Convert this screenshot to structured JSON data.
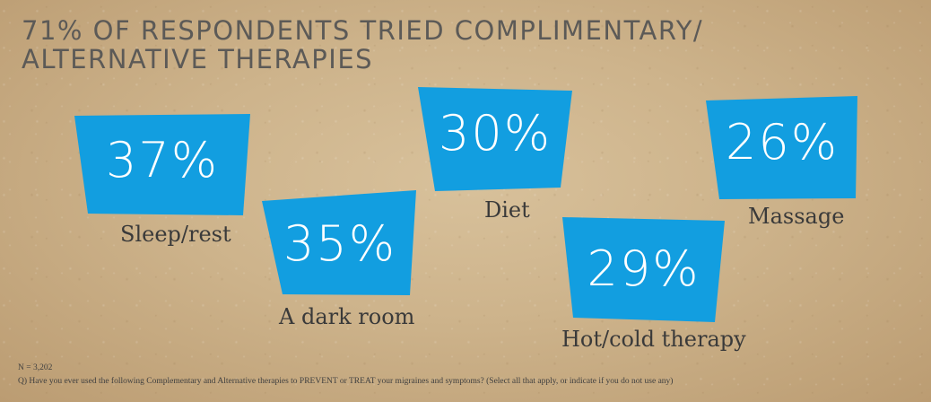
{
  "title": {
    "line1": "71% OF RESPONDENTS TRIED COMPLIMENTARY/",
    "line2": "ALTERNATIVE THERAPIES"
  },
  "colors": {
    "card": "#129ee0",
    "card_shadow": "#0b6fa3",
    "value_text": "#ffffff",
    "label_text": "#3a3a3a"
  },
  "chart_data": {
    "type": "bar",
    "unit": "%",
    "categories": [
      "Sleep/rest",
      "A dark room",
      "Diet",
      "Hot/cold therapy",
      "Massage"
    ],
    "values": [
      37,
      35,
      30,
      29,
      26
    ],
    "value_labels": [
      "37%",
      "35%",
      "30%",
      "29%",
      "26%"
    ],
    "title": "71% OF RESPONDENTS TRIED COMPLIMENTARY/ ALTERNATIVE THERAPIES"
  },
  "footnote": {
    "n": "N = 3,202",
    "question": "Q) Have you ever used the following Complementary and Alternative therapies to PREVENT or TREAT your migraines and symptoms? (Select all that apply, or indicate if you do not use any)"
  }
}
